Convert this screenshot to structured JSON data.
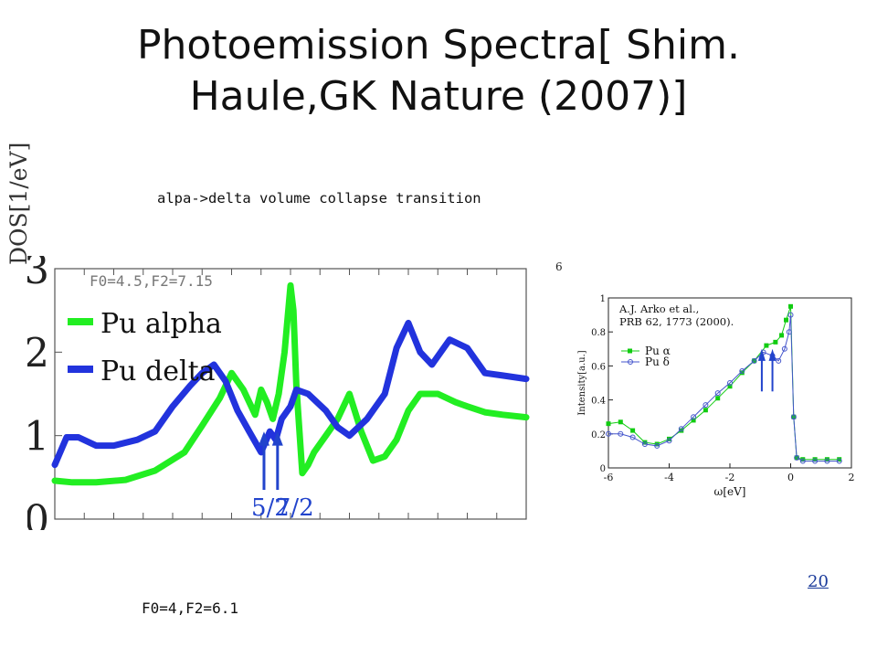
{
  "slide": {
    "title_line1": "Photoemission Spectra[ Shim.",
    "title_line2": "Haule,GK Nature (2007)]",
    "subtitle": "alpa->delta volume collapse transition",
    "note_top": "F0=4.5,F2=7.15",
    "note_bottom": "F0=4,F2=6.1",
    "page_number": "20"
  },
  "colors": {
    "pu_alpha": "#22ee22",
    "pu_delta": "#2233dd",
    "arrow": "#2244cc",
    "exp_alpha": "#11cc11",
    "exp_delta": "#4455cc"
  },
  "chart_data": [
    {
      "type": "line",
      "ylabel": "DOS[1/eV]",
      "ylim": [
        0,
        3
      ],
      "xlim": [
        -4,
        4
      ],
      "y_ticks": [
        "0",
        "1",
        "2",
        "3"
      ],
      "legend_placement": "top-left",
      "series": [
        {
          "name": "Pu alpha",
          "color": "#22ee22",
          "x": [
            -4,
            -3.7,
            -3.3,
            -2.8,
            -2.3,
            -1.8,
            -1.5,
            -1.2,
            -1.0,
            -0.8,
            -0.6,
            -0.5,
            -0.4,
            -0.3,
            -0.2,
            -0.1,
            0.0,
            0.05,
            0.1,
            0.2,
            0.3,
            0.4,
            0.6,
            0.8,
            1.0,
            1.2,
            1.4,
            1.6,
            1.8,
            2.0,
            2.2,
            2.5,
            2.8,
            3.0,
            3.3,
            3.6,
            4.0
          ],
          "y": [
            0.46,
            0.44,
            0.44,
            0.47,
            0.58,
            0.8,
            1.12,
            1.45,
            1.75,
            1.55,
            1.25,
            1.55,
            1.4,
            1.2,
            1.5,
            2.0,
            2.8,
            2.5,
            1.6,
            0.55,
            0.65,
            0.8,
            1.0,
            1.2,
            1.5,
            1.05,
            0.7,
            0.75,
            0.95,
            1.3,
            1.5,
            1.5,
            1.4,
            1.35,
            1.28,
            1.25,
            1.22
          ]
        },
        {
          "name": "Pu delta",
          "color": "#2233dd",
          "x": [
            -4,
            -3.8,
            -3.6,
            -3.3,
            -3.0,
            -2.6,
            -2.3,
            -2.0,
            -1.7,
            -1.5,
            -1.3,
            -1.1,
            -0.9,
            -0.7,
            -0.5,
            -0.35,
            -0.25,
            -0.15,
            0.0,
            0.1,
            0.3,
            0.6,
            0.8,
            1.0,
            1.3,
            1.6,
            1.8,
            2.0,
            2.2,
            2.4,
            2.7,
            3.0,
            3.3,
            3.6,
            4.0
          ],
          "y": [
            0.65,
            0.98,
            0.98,
            0.88,
            0.88,
            0.95,
            1.05,
            1.35,
            1.6,
            1.75,
            1.85,
            1.65,
            1.3,
            1.05,
            0.8,
            1.05,
            0.95,
            1.2,
            1.35,
            1.55,
            1.5,
            1.3,
            1.1,
            1.0,
            1.2,
            1.5,
            2.05,
            2.35,
            2.0,
            1.85,
            2.15,
            2.05,
            1.75,
            1.72,
            1.68
          ]
        }
      ],
      "annotations": [
        "5/2",
        "7/2"
      ]
    },
    {
      "type": "scatter",
      "xlabel": "ω[eV]",
      "ylabel": "Intensity[a.u.]",
      "xlim": [
        -6,
        2
      ],
      "ylim": [
        0,
        1
      ],
      "x_ticks": [
        "-6",
        "-4",
        "-2",
        "0",
        "2"
      ],
      "y_ticks": [
        "0",
        "0.2",
        "0.4",
        "0.6",
        "0.8",
        "1"
      ],
      "stray_label": "6",
      "citation_line1": "A.J. Arko et al.,",
      "citation_line2": "PRB 62, 1773 (2000).",
      "series": [
        {
          "name": "Pu α",
          "color": "#11cc11",
          "x": [
            -6.0,
            -5.6,
            -5.2,
            -4.8,
            -4.4,
            -4.0,
            -3.6,
            -3.2,
            -2.8,
            -2.4,
            -2.0,
            -1.6,
            -1.2,
            -0.8,
            -0.5,
            -0.3,
            -0.15,
            0.0,
            0.1,
            0.2,
            0.4,
            0.8,
            1.2,
            1.6
          ],
          "y": [
            0.26,
            0.27,
            0.22,
            0.15,
            0.14,
            0.17,
            0.22,
            0.28,
            0.34,
            0.41,
            0.48,
            0.56,
            0.63,
            0.72,
            0.74,
            0.78,
            0.87,
            0.95,
            0.3,
            0.06,
            0.05,
            0.05,
            0.05,
            0.05
          ]
        },
        {
          "name": "Pu δ",
          "color": "#4455cc",
          "x": [
            -6.0,
            -5.6,
            -5.2,
            -4.8,
            -4.4,
            -4.0,
            -3.6,
            -3.2,
            -2.8,
            -2.4,
            -2.0,
            -1.6,
            -1.2,
            -0.9,
            -0.6,
            -0.4,
            -0.2,
            -0.05,
            0.0,
            0.1,
            0.2,
            0.4,
            0.8,
            1.2,
            1.6
          ],
          "y": [
            0.2,
            0.2,
            0.18,
            0.14,
            0.13,
            0.16,
            0.23,
            0.3,
            0.37,
            0.44,
            0.5,
            0.57,
            0.63,
            0.68,
            0.66,
            0.63,
            0.7,
            0.8,
            0.9,
            0.3,
            0.06,
            0.04,
            0.04,
            0.04,
            0.04
          ]
        }
      ],
      "annotations": [
        "arrow",
        "arrow"
      ]
    }
  ]
}
